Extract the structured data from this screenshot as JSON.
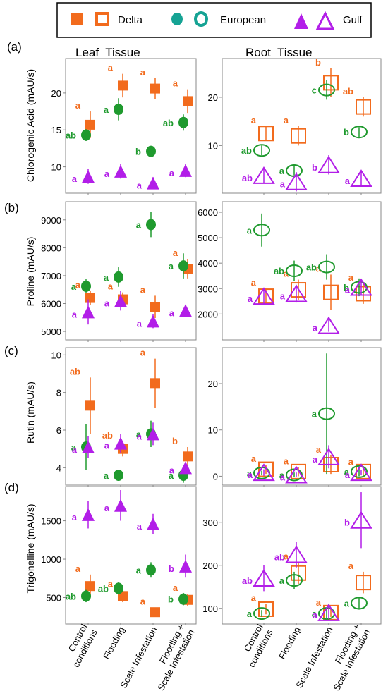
{
  "legend": {
    "items": [
      {
        "name": "Delta"
      },
      {
        "name": "European"
      },
      {
        "name": "Gulf"
      }
    ]
  },
  "colors": {
    "Delta": "#f26b1d",
    "European": "#1f9a2e",
    "Gulf": "#b21ee8",
    "European_fill": "#16a394"
  },
  "labels": {
    "leaf_title": "Leaf  Tissue",
    "root_title": "Root  Tissue",
    "panels": [
      "(a)",
      "(b)",
      "(c)",
      "(d)"
    ],
    "categories": [
      "Control\nconditions",
      "Flooding",
      "Scale Infestation",
      "Flooding +\nScale Infestation"
    ]
  },
  "chart_data": [
    {
      "type": "scatter",
      "panel": "(a)",
      "tissue": "Leaf",
      "ylabel": "Chlorogenic Acid (mAU/s)",
      "categories": [
        "Control conditions",
        "Flooding",
        "Scale Infestation",
        "Flooding + Scale Infestation"
      ],
      "ylim": [
        7,
        24
      ],
      "yticks": [
        10,
        15,
        20
      ],
      "series": [
        {
          "name": "Delta",
          "values": [
            15.7,
            21.0,
            20.6,
            18.9
          ],
          "err": [
            1.8,
            1.6,
            1.4,
            1.6
          ],
          "letters": [
            "a",
            "a",
            "a",
            "a"
          ]
        },
        {
          "name": "European",
          "values": [
            14.3,
            17.8,
            12.1,
            16.0
          ],
          "err": [
            0.8,
            1.5,
            0.7,
            1.1
          ],
          "letters": [
            "ab",
            "a",
            "b",
            "ab"
          ]
        },
        {
          "name": "Gulf",
          "values": [
            8.7,
            9.4,
            7.8,
            9.5
          ],
          "err": [
            1.0,
            1.0,
            0.8,
            0.9
          ],
          "letters": [
            "a",
            "a",
            "a",
            "a"
          ]
        }
      ]
    },
    {
      "type": "scatter",
      "panel": "(a)",
      "tissue": "Root",
      "categories": [
        "Control conditions",
        "Flooding",
        "Scale Infestation",
        "Flooding + Scale Infestation"
      ],
      "ylim": [
        1,
        27
      ],
      "yticks": [
        10,
        20
      ],
      "series": [
        {
          "name": "Delta",
          "values": [
            12.5,
            12.0,
            23.0,
            18.0
          ],
          "err": [
            1.5,
            2.0,
            3.0,
            2.0
          ],
          "letters": [
            "a",
            "a",
            "b",
            "ab"
          ]
        },
        {
          "name": "European",
          "values": [
            9.0,
            4.8,
            21.5,
            12.8
          ],
          "err": [
            1.0,
            1.0,
            2.0,
            1.0
          ],
          "letters": [
            "ab",
            "a",
            "c",
            "b"
          ]
        },
        {
          "name": "Gulf",
          "values": [
            3.8,
            2.5,
            6.0,
            3.2
          ],
          "err": [
            1.5,
            2.0,
            2.0,
            1.5
          ],
          "letters": [
            "ab",
            "a",
            "b",
            "a"
          ]
        }
      ]
    },
    {
      "type": "scatter",
      "panel": "(b)",
      "tissue": "Leaf",
      "ylabel": "Proline (mAU/s)",
      "categories": [
        "Control conditions",
        "Flooding",
        "Scale Infestation",
        "Flooding + Scale Infestation"
      ],
      "ylim": [
        4850,
        9500
      ],
      "yticks": [
        5000,
        6000,
        7000,
        8000,
        9000
      ],
      "series": [
        {
          "name": "Delta",
          "values": [
            6200,
            6150,
            5880,
            7250
          ],
          "err": [
            250,
            250,
            400,
            350
          ],
          "letters": [
            "a",
            "a",
            "a",
            "a"
          ]
        },
        {
          "name": "European",
          "values": [
            6620,
            6950,
            8830,
            7350
          ],
          "err": [
            250,
            350,
            450,
            450
          ],
          "letters": [
            "a",
            "a",
            "a",
            "a"
          ]
        },
        {
          "name": "Gulf",
          "values": [
            5700,
            6100,
            5370,
            5750
          ],
          "err": [
            450,
            350,
            250,
            200
          ],
          "letters": [
            "a",
            "a",
            "a",
            "a"
          ]
        }
      ]
    },
    {
      "type": "scatter",
      "panel": "(b)",
      "tissue": "Root",
      "categories": [
        "Control conditions",
        "Flooding",
        "Scale Infestation",
        "Flooding + Scale Infestation"
      ],
      "ylim": [
        1150,
        6250
      ],
      "yticks": [
        2000,
        3000,
        4000,
        5000,
        6000
      ],
      "series": [
        {
          "name": "Delta",
          "values": [
            2700,
            2950,
            2850,
            2800
          ],
          "err": [
            300,
            400,
            700,
            400
          ],
          "letters": [
            "a",
            "a",
            "a",
            "a"
          ]
        },
        {
          "name": "European",
          "values": [
            5300,
            3700,
            3850,
            3050
          ],
          "err": [
            650,
            400,
            500,
            350
          ],
          "letters": [
            "a",
            "ab",
            "ab",
            "b"
          ]
        },
        {
          "name": "Gulf",
          "values": [
            2700,
            2800,
            1550,
            3050
          ],
          "err": [
            300,
            350,
            250,
            300
          ],
          "letters": [
            "a",
            "a",
            "a",
            "a"
          ]
        }
      ]
    },
    {
      "type": "scatter",
      "panel": "(c)",
      "tissue": "Leaf",
      "ylabel": "Rutin (mAU/s)",
      "categories": [
        "Control conditions",
        "Flooding",
        "Scale Infestation",
        "Flooding + Scale Infestation"
      ],
      "ylim": [
        3.3,
        10.2
      ],
      "yticks": [
        4,
        6,
        8,
        10
      ],
      "series": [
        {
          "name": "Delta",
          "values": [
            7.3,
            5.0,
            8.5,
            4.6
          ],
          "err": [
            1.5,
            0.4,
            1.3,
            0.5
          ],
          "letters": [
            "ab",
            "ab",
            "a",
            "b"
          ]
        },
        {
          "name": "European",
          "values": [
            5.1,
            3.6,
            5.8,
            3.6
          ],
          "err": [
            1.2,
            0.3,
            0.7,
            0.4
          ],
          "letters": [
            "a",
            "a",
            "a",
            "a"
          ]
        },
        {
          "name": "Gulf",
          "values": [
            5.1,
            5.3,
            5.8,
            4.0
          ],
          "err": [
            0.6,
            0.5,
            0.6,
            0.3
          ],
          "letters": [
            "a",
            "a",
            "a",
            "a"
          ]
        }
      ]
    },
    {
      "type": "scatter",
      "panel": "(c)",
      "tissue": "Root",
      "categories": [
        "Control conditions",
        "Flooding",
        "Scale Infestation",
        "Flooding + Scale Infestation"
      ],
      "ylim": [
        -1,
        27
      ],
      "yticks": [
        0,
        10,
        20
      ],
      "series": [
        {
          "name": "Delta",
          "values": [
            1.5,
            1.0,
            2.5,
            1.0
          ],
          "err": [
            1.0,
            1.0,
            2.0,
            0.8
          ],
          "letters": [
            "a",
            "a",
            "a",
            "a"
          ]
        },
        {
          "name": "European",
          "values": [
            0.7,
            0.3,
            13.5,
            1.0
          ],
          "err": [
            0.5,
            0.5,
            13.0,
            1.0
          ],
          "letters": [
            "a",
            "a",
            "a",
            "a"
          ]
        },
        {
          "name": "Gulf",
          "values": [
            0.8,
            0.3,
            4.2,
            0.8
          ],
          "err": [
            0.7,
            0.5,
            2.5,
            0.6
          ],
          "letters": [
            "a",
            "a",
            "a",
            "a"
          ]
        }
      ]
    },
    {
      "type": "scatter",
      "panel": "(d)",
      "tissue": "Leaf",
      "ylabel": "Trigonelline (mAU/s)",
      "categories": [
        "Control conditions",
        "Flooding",
        "Scale Infestation",
        "Flooding + Scale Infestation"
      ],
      "ylim": [
        220,
        1900
      ],
      "yticks": [
        500,
        1000,
        1500
      ],
      "series": [
        {
          "name": "Delta",
          "values": [
            650,
            520,
            310,
            470
          ],
          "err": [
            150,
            80,
            60,
            80
          ],
          "letters": [
            "a",
            "a",
            "a",
            "a"
          ]
        },
        {
          "name": "European",
          "values": [
            520,
            620,
            860,
            480
          ],
          "err": [
            80,
            80,
            100,
            80
          ],
          "letters": [
            "ab",
            "ab",
            "a",
            "b"
          ]
        },
        {
          "name": "Gulf",
          "values": [
            1580,
            1700,
            1460,
            910
          ],
          "err": [
            180,
            200,
            130,
            150
          ],
          "letters": [
            "a",
            "a",
            "a",
            "b"
          ]
        }
      ]
    },
    {
      "type": "scatter",
      "panel": "(d)",
      "tissue": "Root",
      "categories": [
        "Control conditions",
        "Flooding",
        "Scale Infestation",
        "Flooding + Scale Infestation"
      ],
      "ylim": [
        75,
        375
      ],
      "yticks": [
        100,
        200,
        300
      ],
      "series": [
        {
          "name": "Delta",
          "values": [
            98,
            182,
            90,
            160
          ],
          "err": [
            12,
            25,
            10,
            25
          ],
          "letters": [
            "a",
            "a",
            "a",
            "a"
          ]
        },
        {
          "name": "European",
          "values": [
            88,
            165,
            88,
            112
          ],
          "err": [
            8,
            20,
            10,
            15
          ],
          "letters": [
            "a",
            "a",
            "a",
            "a"
          ]
        },
        {
          "name": "Gulf",
          "values": [
            170,
            225,
            90,
            305
          ],
          "err": [
            30,
            30,
            15,
            65
          ],
          "letters": [
            "ab",
            "ab",
            "a",
            "b"
          ]
        }
      ]
    }
  ]
}
